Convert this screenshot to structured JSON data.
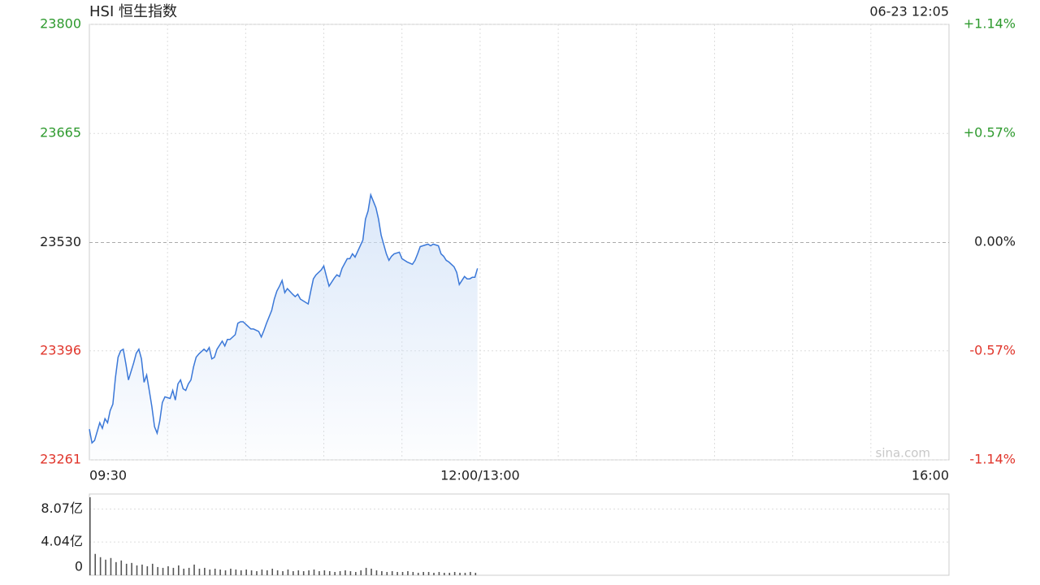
{
  "chart_data": [
    {
      "type": "line",
      "title": "HSI 恒生指数",
      "timestamp": "06-23 12:05",
      "watermark": "sina.com",
      "color": "#3b78d8",
      "fill_color": "#cfe0f7",
      "up_color": "#2e9a2e",
      "down_color": "#e0352b",
      "reference_line": 23530,
      "x": [
        0,
        1,
        2,
        4,
        5,
        6,
        7,
        8,
        9,
        10,
        11,
        12,
        13,
        14,
        15,
        17,
        18,
        19,
        20,
        21,
        22,
        23,
        24,
        25,
        26,
        27,
        28,
        29,
        31,
        32,
        33,
        34,
        35,
        36,
        37,
        38,
        39,
        40,
        41,
        42,
        44,
        45,
        46,
        47,
        48,
        49,
        51,
        52,
        53,
        54,
        56,
        57,
        58,
        59,
        61,
        62,
        63,
        65,
        66,
        67,
        68,
        70,
        71,
        72,
        73,
        74,
        75,
        76,
        78,
        79,
        80,
        81,
        82,
        84,
        85,
        86,
        87,
        89,
        90,
        91,
        92,
        94,
        95,
        96,
        97,
        99,
        100,
        101,
        102,
        104,
        105,
        106,
        107,
        108,
        110,
        111,
        112,
        114,
        115,
        116,
        117,
        119,
        120,
        121,
        122,
        124,
        125,
        126,
        127,
        128,
        130,
        131,
        132,
        134,
        135,
        136,
        137,
        138,
        140,
        141,
        142,
        144,
        145,
        146,
        147,
        148,
        149
      ],
      "values": [
        23299,
        23282,
        23285,
        23307,
        23300,
        23312,
        23307,
        23322,
        23330,
        23363,
        23388,
        23396,
        23398,
        23380,
        23360,
        23381,
        23393,
        23398,
        23386,
        23357,
        23366,
        23347,
        23327,
        23302,
        23294,
        23309,
        23332,
        23339,
        23337,
        23347,
        23335,
        23355,
        23360,
        23349,
        23347,
        23355,
        23360,
        23376,
        23388,
        23392,
        23398,
        23395,
        23400,
        23386,
        23388,
        23398,
        23408,
        23402,
        23410,
        23410,
        23416,
        23430,
        23432,
        23432,
        23426,
        23423,
        23423,
        23420,
        23413,
        23421,
        23430,
        23446,
        23460,
        23470,
        23476,
        23483,
        23468,
        23473,
        23466,
        23463,
        23466,
        23460,
        23458,
        23454,
        23470,
        23485,
        23490,
        23496,
        23501,
        23488,
        23476,
        23486,
        23490,
        23488,
        23498,
        23510,
        23510,
        23516,
        23512,
        23526,
        23533,
        23559,
        23569,
        23589,
        23573,
        23559,
        23539,
        23516,
        23508,
        23513,
        23516,
        23518,
        23510,
        23508,
        23506,
        23503,
        23508,
        23516,
        23525,
        23526,
        23528,
        23526,
        23528,
        23526,
        23516,
        23513,
        23508,
        23506,
        23500,
        23493,
        23478,
        23488,
        23485,
        23485,
        23487,
        23487,
        23498
      ],
      "xlim": [
        0,
        330
      ],
      "xticks": [
        {
          "value": 0,
          "label": "09:30"
        },
        {
          "value": 150,
          "label": "12:00/13:00"
        },
        {
          "value": 330,
          "label": "16:00"
        }
      ],
      "x_grid": [
        30,
        60,
        90,
        120,
        150,
        180,
        210,
        240,
        270,
        300
      ],
      "ylim": [
        23261,
        23800
      ],
      "yticks": [
        23261,
        23396,
        23530,
        23665,
        23800
      ],
      "y2lim": [
        -1.14,
        1.14
      ],
      "y2ticks": [
        {
          "value": -1.14,
          "label": "-1.14%"
        },
        {
          "value": -0.57,
          "label": "-0.57%"
        },
        {
          "value": 0,
          "label": "0.00%"
        },
        {
          "value": 0.57,
          "label": "+0.57%"
        },
        {
          "value": 1.14,
          "label": "+1.14%"
        }
      ],
      "grid": true
    },
    {
      "type": "bar",
      "color": "#555555",
      "x": [
        0,
        2,
        4,
        6,
        8,
        10,
        12,
        14,
        16,
        18,
        20,
        22,
        24,
        26,
        28,
        30,
        32,
        34,
        36,
        38,
        40,
        42,
        44,
        46,
        48,
        50,
        52,
        54,
        56,
        58,
        60,
        62,
        64,
        66,
        68,
        70,
        72,
        74,
        76,
        78,
        80,
        82,
        84,
        86,
        88,
        90,
        92,
        94,
        96,
        98,
        100,
        102,
        104,
        106,
        108,
        110,
        112,
        114,
        116,
        118,
        120,
        122,
        124,
        126,
        128,
        130,
        132,
        134,
        136,
        138,
        140,
        142,
        144,
        146,
        148
      ],
      "values": [
        9.5,
        2.6,
        2.2,
        1.9,
        2.1,
        1.6,
        1.8,
        1.4,
        1.5,
        1.2,
        1.3,
        1.1,
        1.4,
        1.0,
        0.9,
        1.1,
        0.9,
        1.2,
        0.8,
        0.9,
        1.3,
        0.8,
        0.9,
        0.7,
        0.8,
        0.7,
        0.6,
        0.8,
        0.7,
        0.6,
        0.7,
        0.6,
        0.5,
        0.7,
        0.6,
        0.8,
        0.6,
        0.5,
        0.7,
        0.5,
        0.6,
        0.5,
        0.6,
        0.7,
        0.5,
        0.6,
        0.5,
        0.4,
        0.5,
        0.6,
        0.5,
        0.4,
        0.6,
        0.9,
        0.8,
        0.6,
        0.5,
        0.4,
        0.5,
        0.4,
        0.4,
        0.5,
        0.4,
        0.3,
        0.4,
        0.4,
        0.3,
        0.4,
        0.3,
        0.3,
        0.4,
        0.3,
        0.3,
        0.4,
        0.3
      ],
      "xlim": [
        0,
        330
      ],
      "ylim": [
        0,
        9.7
      ],
      "yticks": [
        0,
        {
          "value": 4.04,
          "label": "4.04亿"
        },
        {
          "value": 8.07,
          "label": "8.07亿"
        }
      ],
      "grid": true
    }
  ]
}
